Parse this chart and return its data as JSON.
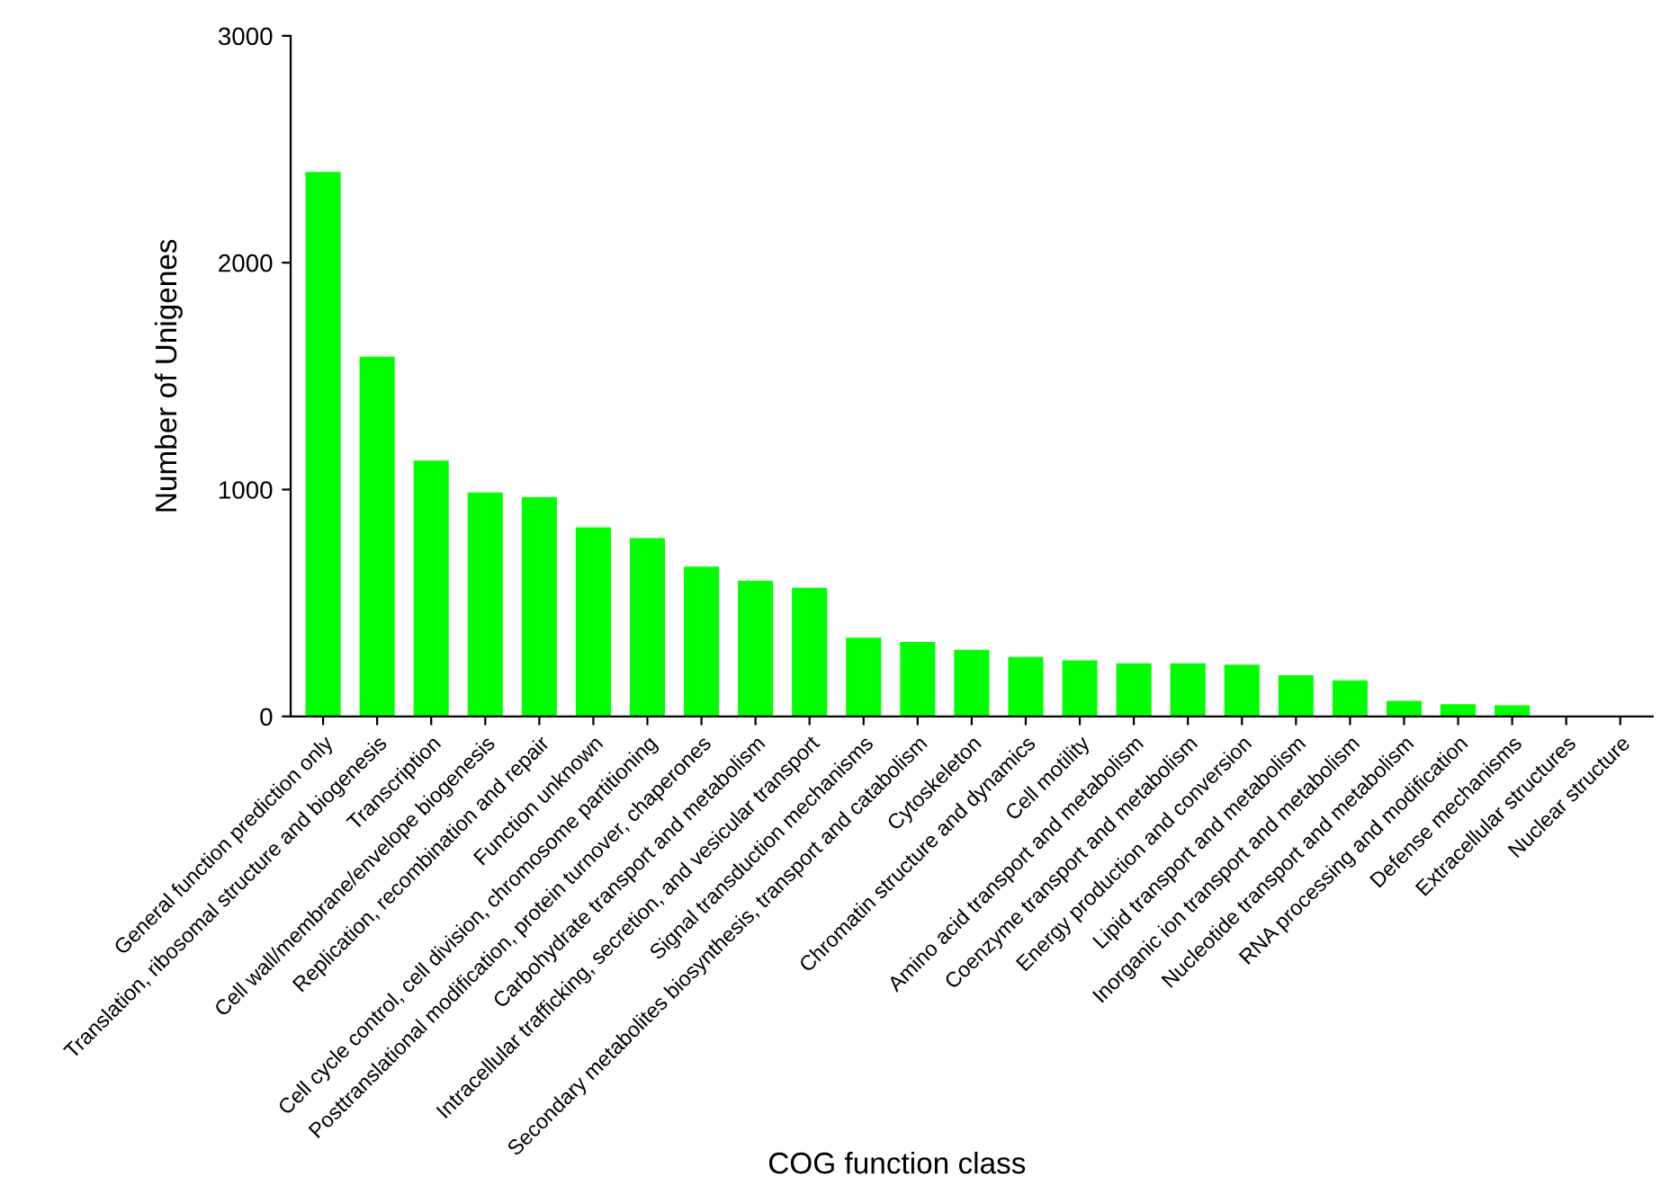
{
  "chart_data": {
    "type": "bar",
    "xlabel": "COG function class",
    "ylabel": "Number of Unigenes",
    "categories": [
      "General function prediction only",
      "Translation, ribosomal structure and biogenesis",
      "Transcription",
      "Cell wall/membrane/envelope biogenesis",
      "Replication, recombination and repair",
      "Function unknown",
      "Cell cycle control, cell division, chromosome partitioning",
      "Posttranslational modification, protein turnover, chaperones",
      "Carbohydrate transport and metabolism",
      "Intracellular trafficking, secretion, and vesicular transport",
      "Signal transduction mechanisms",
      "Secondary metabolites biosynthesis, transport and catabolism",
      "Cytoskeleton",
      "Chromatin structure and dynamics",
      "Cell motility",
      "Amino acid transport and metabolism",
      "Coenzyme transport and metabolism",
      "Energy production and conversion",
      "Lipid transport and metabolism",
      "Inorganic ion transport and metabolism",
      "Nucleotide transport and metabolism",
      "RNA processing and modification",
      "Defense mechanisms",
      "Extracellular structures",
      "Nuclear structure"
    ],
    "values": [
      2400,
      1585,
      1128,
      987,
      966,
      833,
      786,
      660,
      598,
      567,
      347,
      328,
      293,
      262,
      247,
      234,
      234,
      228,
      182,
      159,
      69,
      54,
      49,
      0,
      0
    ],
    "color": "#00ff00",
    "ylim": [
      0,
      3000
    ],
    "yticks": [
      0,
      1000,
      2000,
      3000
    ],
    "grid": false,
    "legend": false
  }
}
